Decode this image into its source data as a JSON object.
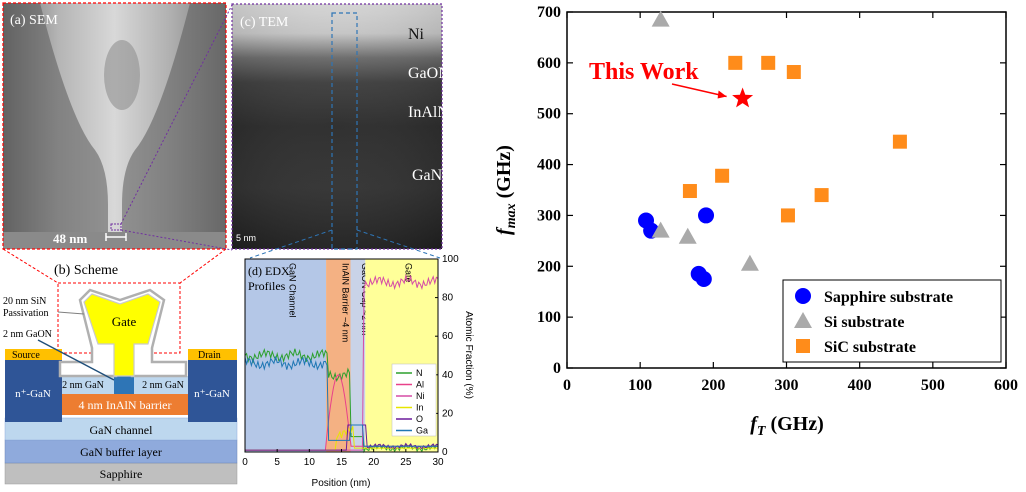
{
  "left_figure": {
    "sem": {
      "label": "(a) SEM",
      "scale_bar": "48 nm"
    },
    "tem": {
      "label": "(c) TEM",
      "scale_bar": "5 nm",
      "layers": [
        "Ni",
        "GaON",
        "InAlN",
        "GaN"
      ]
    },
    "scheme": {
      "label": "(b) Scheme",
      "gate": "Gate",
      "source": "Source",
      "drain": "Drain",
      "sin_line1": "20 nm SiN",
      "sin_line2": "Passivation",
      "gaon": "2 nm GaON",
      "cap_left": "2 nm GaN",
      "cap_right": "2 nm GaN",
      "nplus_left": "n⁺-GaN",
      "nplus_right": "n⁺-GaN",
      "barrier": "4 nm InAlN barrier",
      "channel": "GaN channel",
      "buffer": "GaN buffer layer",
      "substrate": "Sapphire",
      "colors": {
        "gate": "#ffff00",
        "nplus": "#2f5597",
        "barrier": "#ed7d31",
        "channel": "#bdd7ee",
        "buffer": "#8faadc",
        "substrate": "#bfbfbf",
        "contact": "#ffc000"
      }
    },
    "edx": {
      "label_line1": "(d) EDX",
      "label_line2": "Profiles",
      "xlabel": "Position (nm)",
      "ylabel": "Atomic Fraction (%)",
      "x_ticks": [
        "0",
        "5",
        "10",
        "15",
        "20",
        "25",
        "30"
      ],
      "y_ticks": [
        "0",
        "20",
        "40",
        "60",
        "80",
        "100"
      ],
      "xlim": [
        0,
        30
      ],
      "ylim": [
        0,
        100
      ],
      "regions": [
        {
          "label": "GaN Channel",
          "from": 0,
          "to": 12.6,
          "color": "#b4c7e7"
        },
        {
          "label": "InAlN Barrier ~4 nm",
          "from": 12.6,
          "to": 16.4,
          "color": "#f4b183"
        },
        {
          "label": "GaON Cap ~2 nm",
          "from": 16.4,
          "to": 18.7,
          "color": "#c9d3e8"
        },
        {
          "label": "Gate",
          "from": 18.7,
          "to": 30,
          "color": "#ffff99"
        }
      ],
      "legend": [
        {
          "name": "N",
          "color": "#2ca02c"
        },
        {
          "name": "Al",
          "color": "#e8418a"
        },
        {
          "name": "Ni",
          "color": "#d64ca6"
        },
        {
          "name": "In",
          "color": "#e6e600"
        },
        {
          "name": "O",
          "color": "#6a1b9a"
        },
        {
          "name": "Ga",
          "color": "#1f77b4"
        }
      ]
    }
  },
  "chart_data": {
    "type": "scatter",
    "title": "",
    "xlabel_main": "f",
    "xlabel_sub": "T",
    "xlabel_unit": " (GHz)",
    "ylabel_main": "f",
    "ylabel_sub": "max",
    "ylabel_unit": " (GHz)",
    "xlim": [
      0,
      600
    ],
    "ylim": [
      0,
      700
    ],
    "x_ticks": [
      0,
      100,
      200,
      300,
      400,
      500,
      600
    ],
    "y_ticks": [
      0,
      100,
      200,
      300,
      400,
      500,
      600,
      700
    ],
    "legend_position": "bottom-right",
    "series": [
      {
        "name": "Sapphire substrate",
        "marker": "circle",
        "color": "#0000ff",
        "points": [
          [
            108,
            290
          ],
          [
            115,
            270
          ],
          [
            190,
            300
          ],
          [
            180,
            185
          ],
          [
            187,
            175
          ]
        ]
      },
      {
        "name": "Si  substrate",
        "marker": "triangle",
        "color": "#aaaaaa",
        "points": [
          [
            128,
            685
          ],
          [
            128,
            270
          ],
          [
            165,
            258
          ],
          [
            250,
            205
          ]
        ]
      },
      {
        "name": "SiC substrate",
        "marker": "square",
        "color": "#ff8c1a",
        "points": [
          [
            230,
            600
          ],
          [
            275,
            600
          ],
          [
            310,
            582
          ],
          [
            168,
            348
          ],
          [
            212,
            378
          ],
          [
            302,
            300
          ],
          [
            348,
            340
          ],
          [
            455,
            445
          ]
        ]
      }
    ],
    "this_work": {
      "label": "This Work",
      "x": 240,
      "y": 530,
      "color": "#ff0000"
    }
  }
}
